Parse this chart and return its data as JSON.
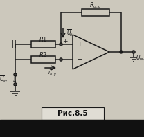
{
  "bg_color": "#ccc8bc",
  "fg_color": "#1a1a1a",
  "caption": "Рис.8.5",
  "caption_bg": "#e0ddd4",
  "caption_text_color": "#111111",
  "black_bar_color": "#111111"
}
